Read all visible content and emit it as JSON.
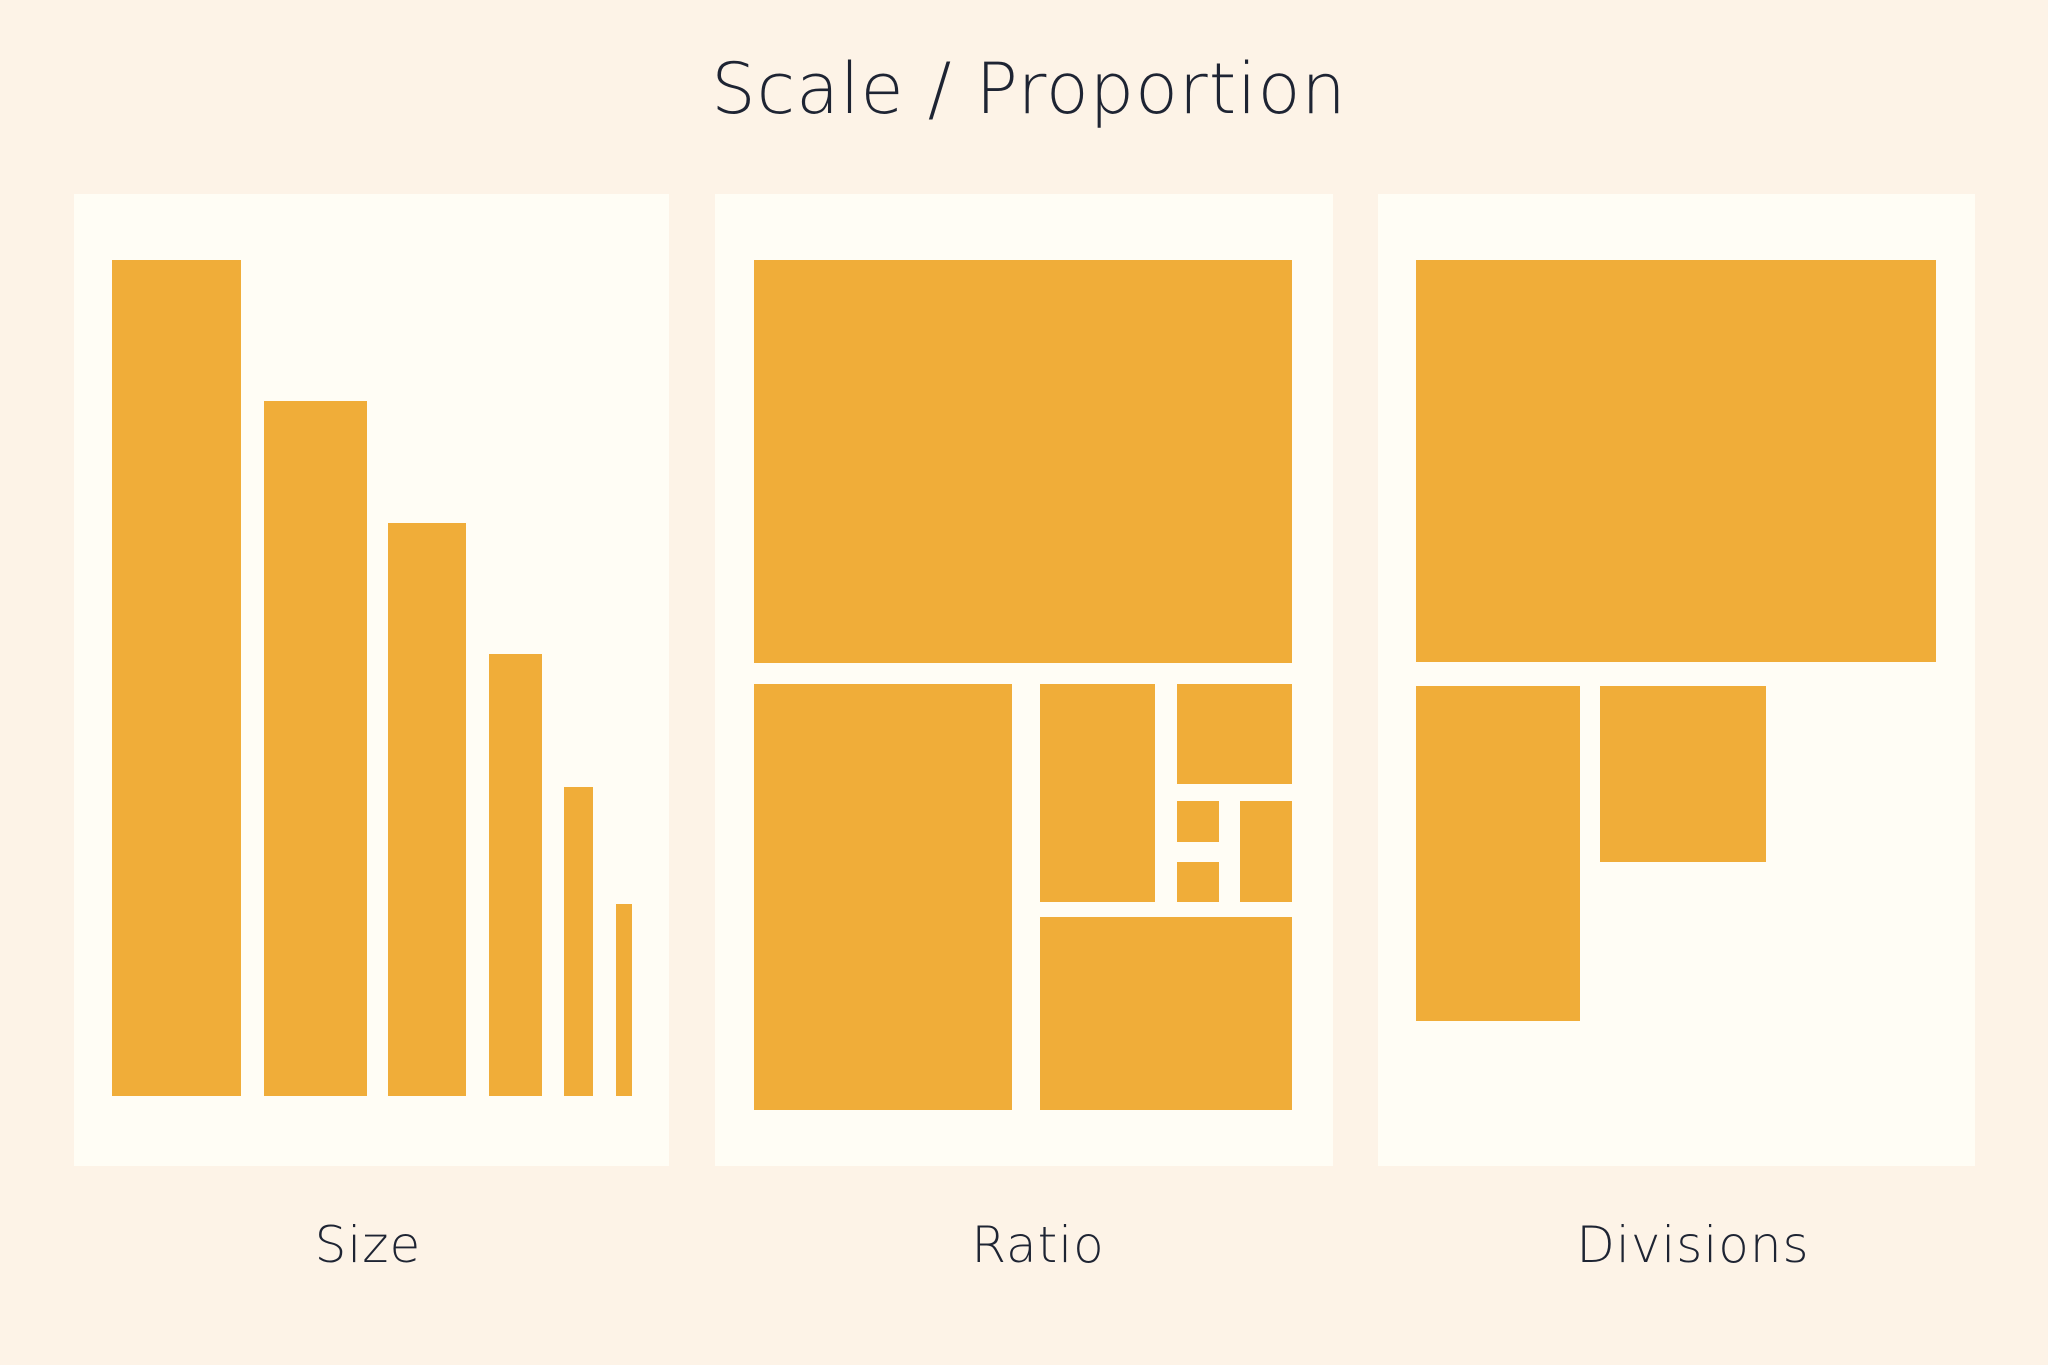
{
  "title": "Scale / Proportion",
  "panels": [
    {
      "caption": "Size"
    },
    {
      "caption": "Ratio"
    },
    {
      "caption": "Divisions"
    }
  ],
  "colors": {
    "background": "#fdf3e7",
    "panel": "#fffdf5",
    "block": "#f0ad39",
    "text": "#1e2433"
  }
}
